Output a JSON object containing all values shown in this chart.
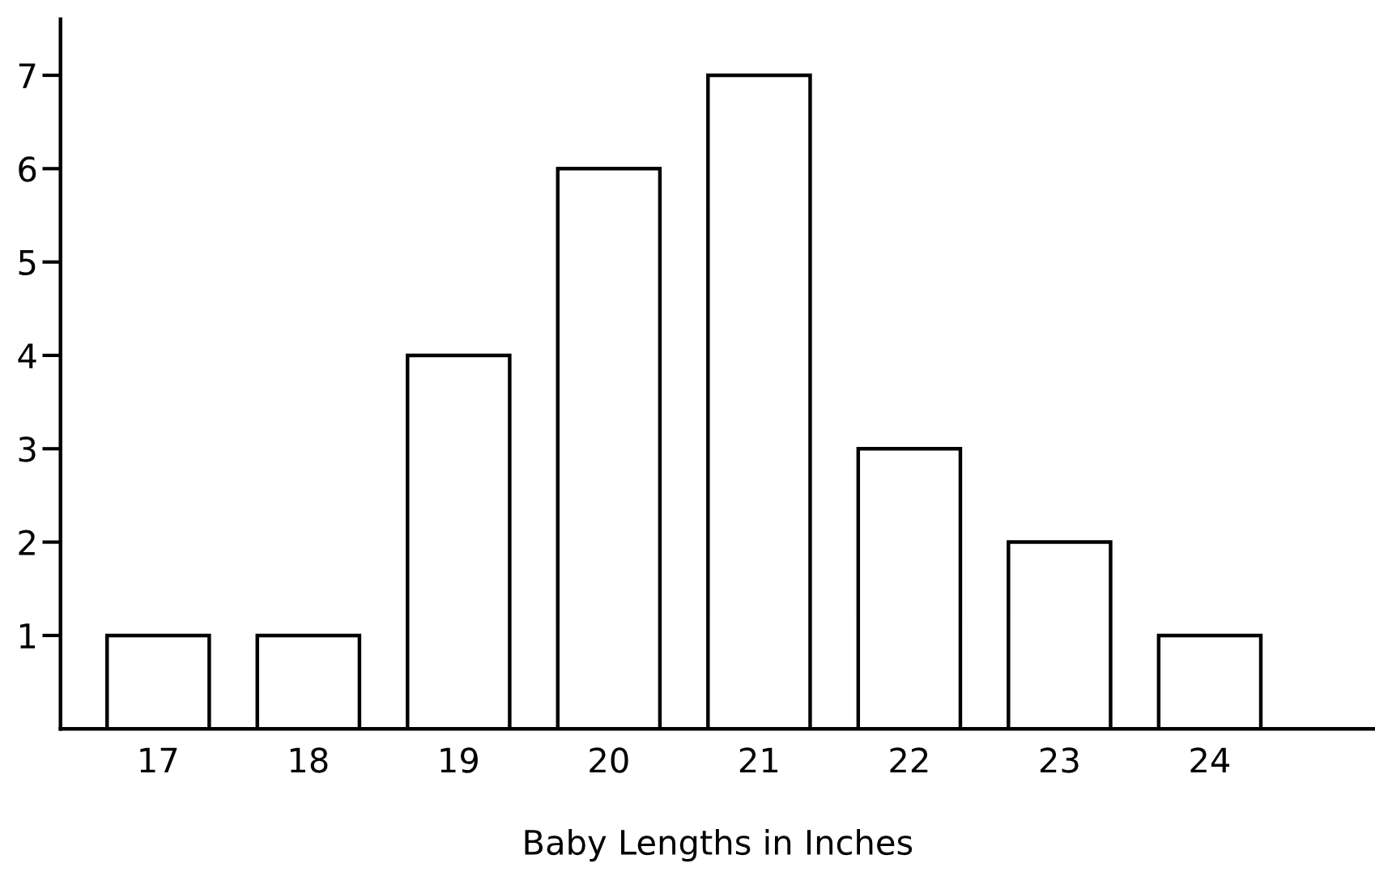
{
  "chart_data": {
    "type": "bar",
    "xlabel": "Baby Lengths in Inches",
    "categories": [
      "17",
      "18",
      "19",
      "20",
      "21",
      "22",
      "23",
      "24"
    ],
    "values": [
      1,
      1,
      4,
      6,
      7,
      3,
      2,
      1
    ],
    "color": "#ffffff",
    "ylim": [
      0,
      7.6
    ],
    "yticks": [
      1,
      2,
      3,
      4,
      5,
      6,
      7
    ],
    "grid": false,
    "legend": false
  }
}
